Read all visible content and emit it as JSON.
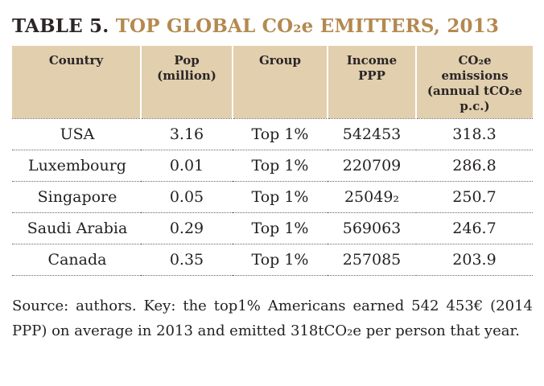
{
  "title": {
    "label": "TABLE 5.",
    "text": "TOP GLOBAL CO₂e EMITTERS, 2013"
  },
  "table": {
    "headers": [
      [
        "Country"
      ],
      [
        "Pop",
        "(million)"
      ],
      [
        "Group"
      ],
      [
        "Income",
        "PPP"
      ],
      [
        "CO₂e",
        "emissions",
        "(annual tCO₂e",
        "p.c.)"
      ]
    ],
    "rows": [
      [
        "USA",
        "3.16",
        "Top 1%",
        "542453",
        "318.3"
      ],
      [
        "Luxembourg",
        "0.01",
        "Top 1%",
        "220709",
        "286.8"
      ],
      [
        "Singapore",
        "0.05",
        "Top 1%",
        "25049₂",
        "250.7"
      ],
      [
        "Saudi Arabia",
        "0.29",
        "Top 1%",
        "569063",
        "246.7"
      ],
      [
        "Canada",
        "0.35",
        "Top 1%",
        "257085",
        "203.9"
      ]
    ]
  },
  "source": "Source: authors. Key: the top1% Americans earned 542 453€ (2014 PPP) on average in 2013 and emitted 318tCO₂e per person that year."
}
